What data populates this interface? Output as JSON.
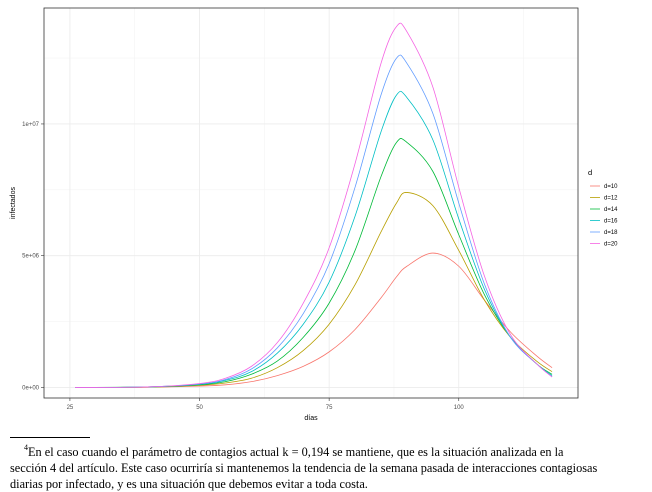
{
  "chart_data": {
    "type": "line",
    "title": "",
    "xlabel": "días",
    "ylabel": "infectados",
    "xlim": [
      20,
      123
    ],
    "ylim": [
      -400000,
      14400000
    ],
    "x_ticks": [
      25,
      50,
      75,
      100
    ],
    "x_tick_labels": [
      "25",
      "50",
      "75",
      "100"
    ],
    "y_ticks": [
      0,
      5000000,
      10000000
    ],
    "y_tick_labels": [
      "0e+00",
      "5e+06",
      "1e+07"
    ],
    "grid": true,
    "legend": {
      "title": "d",
      "placement": "right"
    },
    "x": [
      26,
      40,
      50,
      55,
      60,
      65,
      70,
      75,
      80,
      85,
      88,
      90,
      95,
      100,
      105,
      110,
      115,
      118
    ],
    "series": [
      {
        "name": "d=10",
        "color": "#F8766D",
        "values_millions": [
          0,
          0.01,
          0.05,
          0.1,
          0.22,
          0.45,
          0.8,
          1.35,
          2.2,
          3.4,
          4.2,
          4.6,
          5.1,
          4.6,
          3.3,
          2.1,
          1.2,
          0.75
        ]
      },
      {
        "name": "d=12",
        "color": "#B79F00",
        "values_millions": [
          0,
          0.01,
          0.08,
          0.17,
          0.35,
          0.75,
          1.4,
          2.4,
          3.9,
          5.9,
          7.0,
          7.4,
          6.9,
          5.2,
          3.3,
          1.9,
          1.0,
          0.6
        ]
      },
      {
        "name": "d=14",
        "color": "#00BA38",
        "values_millions": [
          0,
          0.02,
          0.1,
          0.22,
          0.5,
          1.0,
          1.9,
          3.2,
          5.2,
          8.0,
          9.3,
          9.3,
          8.2,
          5.8,
          3.5,
          1.9,
          0.9,
          0.5
        ]
      },
      {
        "name": "d=16",
        "color": "#00BFC4",
        "values_millions": [
          0,
          0.02,
          0.12,
          0.27,
          0.6,
          1.3,
          2.4,
          4.0,
          6.5,
          9.7,
          11.1,
          11.0,
          9.4,
          6.4,
          3.7,
          1.9,
          0.9,
          0.45
        ]
      },
      {
        "name": "d=18",
        "color": "#619CFF",
        "values_millions": [
          0,
          0.02,
          0.13,
          0.3,
          0.7,
          1.5,
          2.8,
          4.7,
          7.6,
          11.1,
          12.5,
          12.3,
          10.4,
          7.0,
          3.9,
          1.9,
          0.9,
          0.4
        ]
      },
      {
        "name": "d=20",
        "color": "#F564E3",
        "values_millions": [
          0,
          0.02,
          0.15,
          0.35,
          0.8,
          1.7,
          3.2,
          5.3,
          8.5,
          12.3,
          13.7,
          13.5,
          11.4,
          7.6,
          4.2,
          2.0,
          0.9,
          0.4
        ]
      }
    ]
  },
  "footnote": {
    "marker": "4",
    "line1": "En el caso cuando el parámetro de contagios actual k = 0,194 se mantiene, que es la situación analizada en la",
    "line2": "sección 4 del artículo. Este caso ocurriría si mantenemos la tendencia de la semana pasada de interacciones contagiosas",
    "line3": "diarias por infectado, y es una situación que debemos evitar a toda costa."
  }
}
